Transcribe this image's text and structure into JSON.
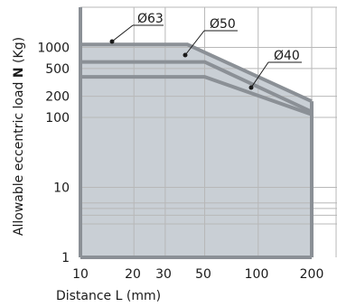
{
  "chart_data": {
    "type": "area",
    "xlabel": "Distance L (mm)",
    "ylabel_pre": "Allowable eccentric load ",
    "ylabel_bold": "N",
    "ylabel_post": " (Kg)",
    "x_scale": "log",
    "y_scale": "log",
    "xlim": [
      10,
      200
    ],
    "ylim": [
      1,
      3500
    ],
    "xticks": [
      "10",
      "20",
      "30",
      "50",
      "100",
      "200"
    ],
    "yticks": [
      "1",
      "10",
      "100",
      "200",
      "500",
      "1000"
    ],
    "grid": true,
    "series": [
      {
        "name": "Ø63",
        "x": [
          10,
          40,
          200
        ],
        "y": [
          1100,
          1100,
          170
        ]
      },
      {
        "name": "Ø50",
        "x": [
          10,
          50,
          200
        ],
        "y": [
          620,
          620,
          120
        ]
      },
      {
        "name": "Ø40",
        "x": [
          10,
          50,
          200
        ],
        "y": [
          380,
          380,
          110
        ]
      }
    ],
    "annotations": [
      "Ø63",
      "Ø50",
      "Ø40"
    ],
    "colors": {
      "area": "#c9cfd5",
      "line": "#8b9096",
      "grid": "#b8b8b8",
      "frame": "#8b9096"
    }
  }
}
